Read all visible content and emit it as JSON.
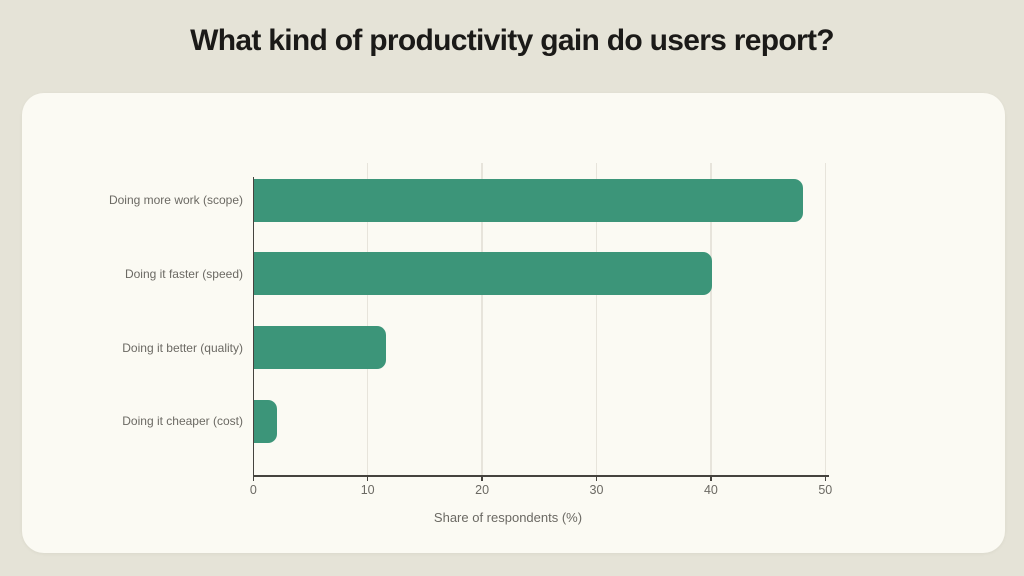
{
  "page": {
    "title": "What kind of productivity gain do users report?",
    "background_color": "#e5e3d7",
    "card_color": "#fbfaf3"
  },
  "chart_data": {
    "type": "bar",
    "orientation": "horizontal",
    "title": "What kind of productivity gain do users report?",
    "categories": [
      "Doing more work (scope)",
      "Doing it faster (speed)",
      "Doing it better (quality)",
      "Doing it cheaper (cost)"
    ],
    "values": [
      48,
      40,
      11.5,
      2
    ],
    "xlabel": "Share of respondents (%)",
    "ylabel": "",
    "xlim": [
      0,
      50
    ],
    "xticks": [
      0,
      10,
      20,
      30,
      40,
      50
    ],
    "grid": true,
    "legend": false,
    "colors": {
      "bar": "#3c9579",
      "axis": "#45433e",
      "gridline": "#e7e4db",
      "tick_text": "#6b6963",
      "title_text": "#1b1a18"
    }
  }
}
